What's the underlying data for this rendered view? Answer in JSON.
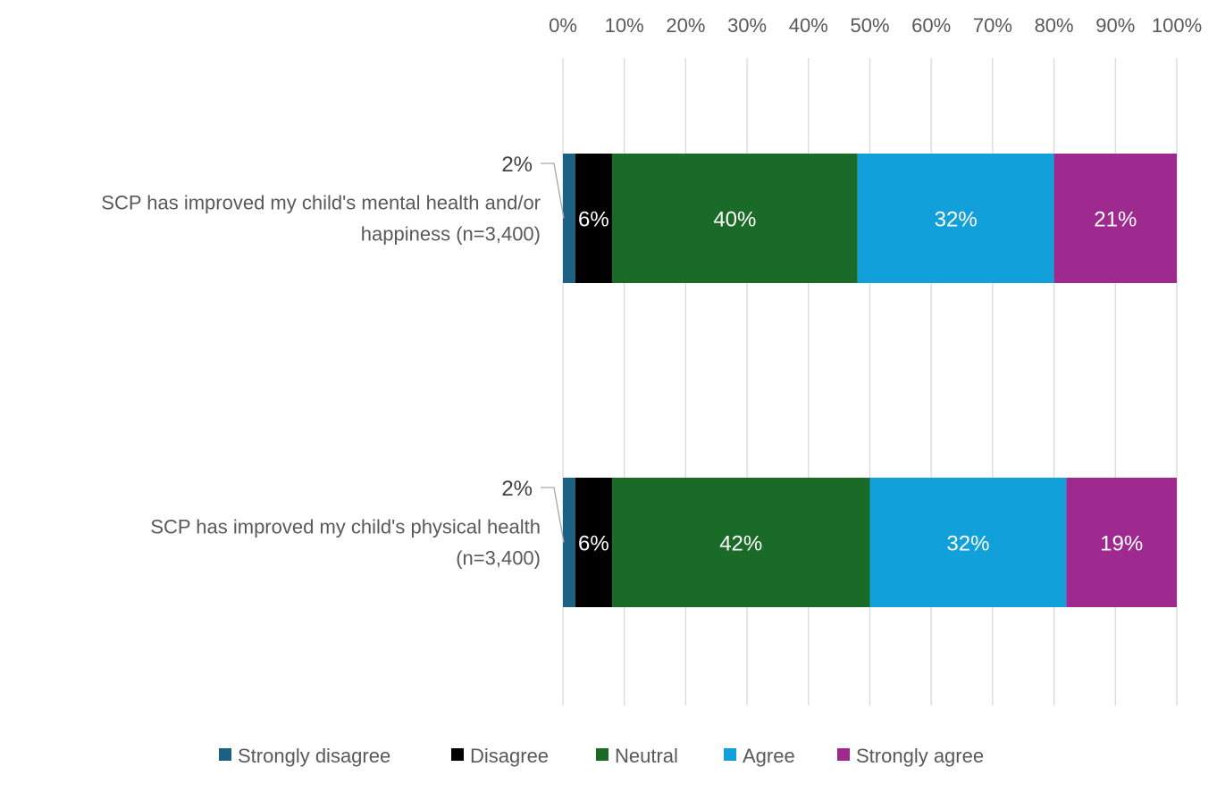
{
  "chart_data": {
    "type": "bar",
    "orientation": "horizontal",
    "stacked": true,
    "categories": [
      [
        "SCP has improved my child's mental health and/or",
        "happiness (n=3,400)"
      ],
      [
        "SCP has improved my child's physical health",
        "(n=3,400)"
      ]
    ],
    "series": [
      {
        "name": "Strongly disagree",
        "color": "#1a6183",
        "values": [
          2,
          2
        ],
        "labels": [
          "2%",
          "2%"
        ]
      },
      {
        "name": "Disagree",
        "color": "#000000",
        "values": [
          6,
          6
        ],
        "labels": [
          "6%",
          "6%"
        ]
      },
      {
        "name": "Neutral",
        "color": "#1b6b28",
        "values": [
          40,
          42
        ],
        "labels": [
          "40%",
          "42%"
        ]
      },
      {
        "name": "Agree",
        "color": "#11a0d9",
        "values": [
          32,
          32
        ],
        "labels": [
          "32%",
          "32%"
        ]
      },
      {
        "name": "Strongly agree",
        "color": "#9e2a8f",
        "values": [
          21,
          19
        ],
        "labels": [
          "21%",
          "19%"
        ]
      }
    ],
    "xlim": [
      0,
      100
    ],
    "x_ticks": [
      "0%",
      "10%",
      "20%",
      "30%",
      "40%",
      "50%",
      "60%",
      "70%",
      "80%",
      "90%",
      "100%"
    ],
    "x_axis_position": "top",
    "grid": true,
    "legend_position": "bottom"
  }
}
